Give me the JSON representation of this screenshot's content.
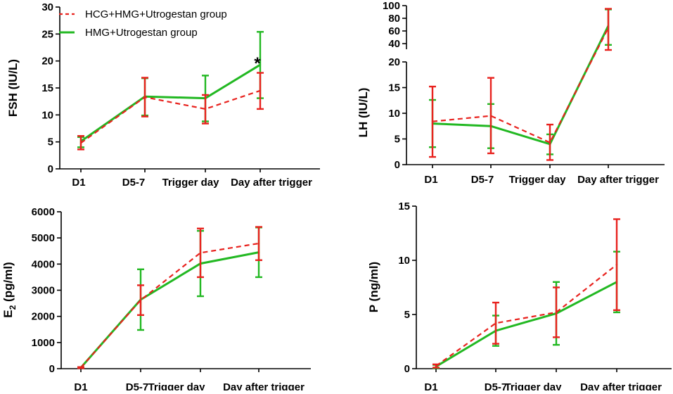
{
  "colors": {
    "group1": "#e8221e",
    "group2": "#22b822",
    "axis": "#000000"
  },
  "legend": {
    "group1_label": "HCG+HMG+Utrogestan group",
    "group2_label": "HMG+Utrogestan group"
  },
  "chart_data": [
    {
      "id": "fsh",
      "type": "line",
      "ylabel": "FSH (IU/L)",
      "ylim": [
        0,
        30
      ],
      "yticks": [
        "0",
        "5",
        "10",
        "15",
        "20",
        "25",
        "30"
      ],
      "categories": [
        "D1",
        "D5-7",
        "Trigger day",
        "Day after trigger"
      ],
      "annotation": "*",
      "series": [
        {
          "name": "HCG+HMG+Utrogestan group",
          "values": [
            4.8,
            13.3,
            11.1,
            14.5
          ],
          "err_low": [
            3.6,
            9.7,
            8.4,
            11.1
          ],
          "err_high": [
            6.1,
            16.9,
            13.7,
            17.8
          ]
        },
        {
          "name": "HMG+Utrogestan group",
          "values": [
            5.1,
            13.4,
            13.1,
            19.3
          ],
          "err_low": [
            4.0,
            9.9,
            8.8,
            13.1
          ],
          "err_high": [
            5.9,
            16.8,
            17.3,
            25.4
          ]
        }
      ]
    },
    {
      "id": "lh",
      "type": "line",
      "ylabel": "LH (IU/L)",
      "ylim_lower": [
        0,
        20
      ],
      "ylim_upper": [
        20,
        100
      ],
      "yticks_lower": [
        "0",
        "5",
        "10",
        "15",
        "20"
      ],
      "yticks_upper": [
        "40",
        "60",
        "80",
        "100"
      ],
      "categories": [
        "D1",
        "D5-7",
        "Trigger day",
        "Day after trigger"
      ],
      "series": [
        {
          "name": "HCG+HMG+Utrogestan group",
          "values": [
            8.4,
            9.5,
            4.3,
            65
          ],
          "err_low": [
            1.5,
            2.2,
            0.9,
            30
          ],
          "err_high": [
            15.2,
            16.9,
            7.8,
            95
          ]
        },
        {
          "name": "HMG+Utrogestan group",
          "values": [
            8.0,
            7.5,
            4.0,
            68
          ],
          "err_low": [
            3.4,
            3.2,
            2.0,
            38
          ],
          "err_high": [
            12.6,
            11.8,
            5.9,
            94
          ]
        }
      ]
    },
    {
      "id": "e2",
      "type": "line",
      "ylabel": "E",
      "ylabel_sub": "2",
      "ylabel_rest": " (pg/ml)",
      "ylim": [
        0,
        6000
      ],
      "yticks": [
        "0",
        "1000",
        "2000",
        "3000",
        "4000",
        "5000",
        "6000"
      ],
      "categories": [
        "D1",
        "D5-7",
        "Trigger day",
        "Day after trigger"
      ],
      "series": [
        {
          "name": "HCG+HMG+Utrogestan group",
          "values": [
            40,
            2620,
            4430,
            4790
          ],
          "err_low": [
            20,
            2050,
            3500,
            4150
          ],
          "err_high": [
            60,
            3190,
            5360,
            5420
          ]
        },
        {
          "name": "HMG+Utrogestan group",
          "values": [
            40,
            2640,
            4020,
            4450
          ],
          "err_low": [
            20,
            1480,
            2770,
            3500
          ],
          "err_high": [
            60,
            3800,
            5270,
            5400
          ]
        }
      ]
    },
    {
      "id": "p",
      "type": "line",
      "ylabel": "P (ng/ml)",
      "ylim": [
        0,
        15
      ],
      "yticks": [
        "0",
        "5",
        "10",
        "15"
      ],
      "categories": [
        "D1",
        "D5-7",
        "Trigger day",
        "Day after trigger"
      ],
      "series": [
        {
          "name": "HCG+HMG+Utrogestan group",
          "values": [
            0.25,
            4.2,
            5.2,
            9.6
          ],
          "err_low": [
            0.1,
            2.3,
            2.9,
            5.4
          ],
          "err_high": [
            0.4,
            6.1,
            7.5,
            13.8
          ]
        },
        {
          "name": "HMG+Utrogestan group",
          "values": [
            0.2,
            3.5,
            5.1,
            8.0
          ],
          "err_low": [
            0.05,
            2.1,
            2.2,
            5.2
          ],
          "err_high": [
            0.35,
            4.9,
            8.0,
            10.8
          ]
        }
      ]
    }
  ]
}
